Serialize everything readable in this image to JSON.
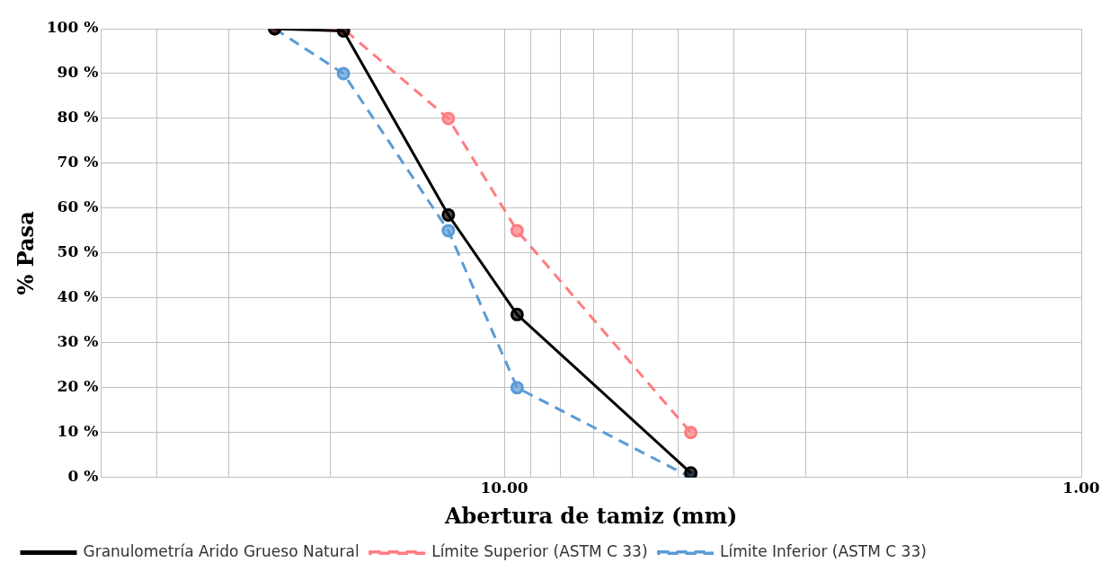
{
  "chart_data": {
    "type": "line",
    "xlabel": "Abertura de tamiz (mm)",
    "ylabel": "% Pasa",
    "log": "x",
    "xlim": [
      50,
      1
    ],
    "xticks": [
      {
        "value": 40,
        "label": null
      },
      {
        "value": 30,
        "label": null
      },
      {
        "value": 20,
        "label": null
      },
      {
        "value": 10,
        "label": "10.00"
      },
      {
        "value": 9,
        "label": null
      },
      {
        "value": 8,
        "label": null
      },
      {
        "value": 7,
        "label": null
      },
      {
        "value": 6,
        "label": null
      },
      {
        "value": 5,
        "label": null
      },
      {
        "value": 4,
        "label": null
      },
      {
        "value": 3,
        "label": null
      },
      {
        "value": 2,
        "label": null
      },
      {
        "value": 1,
        "label": "1.00"
      }
    ],
    "ylim": [
      0,
      100
    ],
    "yticks": [
      {
        "value": 0,
        "label": "0 %"
      },
      {
        "value": 10,
        "label": "10 %"
      },
      {
        "value": 20,
        "label": "20 %"
      },
      {
        "value": 30,
        "label": "30 %"
      },
      {
        "value": 40,
        "label": "40 %"
      },
      {
        "value": 50,
        "label": "50 %"
      },
      {
        "value": 60,
        "label": "60 %"
      },
      {
        "value": 70,
        "label": "70 %"
      },
      {
        "value": 80,
        "label": "80 %"
      },
      {
        "value": 90,
        "label": "90 %"
      },
      {
        "value": 100,
        "label": "100 %"
      }
    ],
    "grid": true,
    "legend": "bottom",
    "marker": "circle",
    "series": [
      {
        "name": "Granulometría Arido Grueso Natural",
        "color": "#000000",
        "line_style": "solid",
        "x": [
          25,
          19,
          12.5,
          9.5,
          4.75
        ],
        "values": [
          100,
          99.5,
          58.5,
          36.3,
          1
        ]
      },
      {
        "name": "Límite Superior (ASTM C 33)",
        "color": "#ff7c80",
        "line_style": "dashed",
        "x": [
          25,
          19,
          12.5,
          9.5,
          4.75
        ],
        "values": [
          100,
          100,
          80,
          55,
          10
        ]
      },
      {
        "name": "Límite Inferior (ASTM C 33)",
        "color": "#5b9bd5",
        "line_style": "dashed",
        "x": [
          25,
          19,
          12.5,
          9.5,
          4.75
        ],
        "values": [
          100,
          90,
          55,
          20,
          0
        ]
      }
    ]
  }
}
